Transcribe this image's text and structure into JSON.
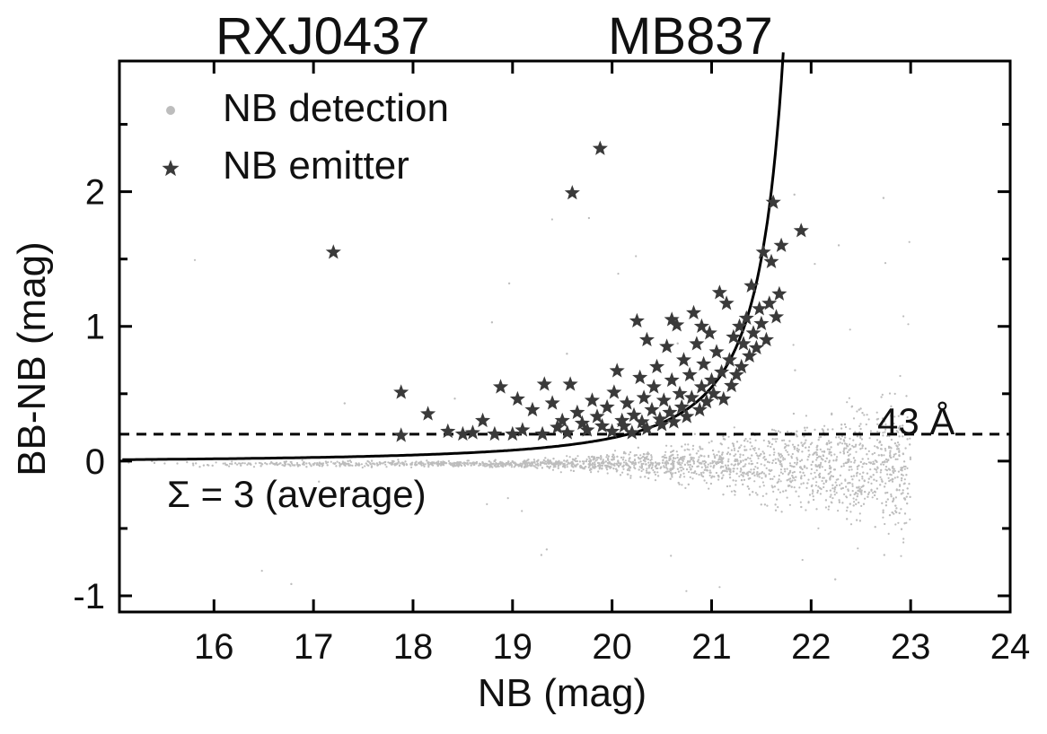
{
  "chart_data": {
    "type": "scatter",
    "title_left": "RXJ0437",
    "title_right": "MB837",
    "xlabel": "NB (mag)",
    "ylabel": "BB-NB (mag)",
    "xlim": [
      15.05,
      24.0
    ],
    "ylim": [
      -1.12,
      2.97
    ],
    "x_ticks": [
      16,
      17,
      18,
      19,
      20,
      21,
      22,
      23,
      24
    ],
    "y_ticks": [
      -1,
      0,
      1,
      2
    ],
    "y_minor_ticks": [
      -0.5,
      0.5,
      1.5,
      2.5
    ],
    "grid": false,
    "legend_position": "top-left",
    "colors": {
      "detection": "#bdbdbd",
      "emitter": "#3a3a3a",
      "axis": "#000000",
      "curve": "#000000"
    },
    "series": [
      {
        "name": "NB detection",
        "marker": "dot",
        "note": "dense cloud of points centered near BB-NB = 0 for NB 15–23 mag"
      },
      {
        "name": "NB emitter",
        "marker": "star",
        "points": [
          [
            17.2,
            1.55
          ],
          [
            17.88,
            0.51
          ],
          [
            17.88,
            0.19
          ],
          [
            18.15,
            0.35
          ],
          [
            18.35,
            0.22
          ],
          [
            18.5,
            0.2
          ],
          [
            18.6,
            0.21
          ],
          [
            18.7,
            0.3
          ],
          [
            18.82,
            0.2
          ],
          [
            18.88,
            0.55
          ],
          [
            19.0,
            0.2
          ],
          [
            19.05,
            0.46
          ],
          [
            19.1,
            0.23
          ],
          [
            19.2,
            0.38
          ],
          [
            19.3,
            0.2
          ],
          [
            19.32,
            0.57
          ],
          [
            19.4,
            0.43
          ],
          [
            19.45,
            0.25
          ],
          [
            19.5,
            0.3
          ],
          [
            19.55,
            0.21
          ],
          [
            19.58,
            0.57
          ],
          [
            19.6,
            1.99
          ],
          [
            19.65,
            0.36
          ],
          [
            19.7,
            0.28
          ],
          [
            19.75,
            0.23
          ],
          [
            19.8,
            0.45
          ],
          [
            19.85,
            0.33
          ],
          [
            19.88,
            2.32
          ],
          [
            19.9,
            0.26
          ],
          [
            19.95,
            0.4
          ],
          [
            20.0,
            0.22
          ],
          [
            20.02,
            0.51
          ],
          [
            20.05,
            0.67
          ],
          [
            20.1,
            0.3
          ],
          [
            20.12,
            0.26
          ],
          [
            20.15,
            0.43
          ],
          [
            20.2,
            0.21
          ],
          [
            20.22,
            0.34
          ],
          [
            20.25,
            1.04
          ],
          [
            20.28,
            0.62
          ],
          [
            20.3,
            0.29
          ],
          [
            20.32,
            0.47
          ],
          [
            20.35,
            0.24
          ],
          [
            20.4,
            0.38
          ],
          [
            20.42,
            0.55
          ],
          [
            20.45,
            0.7
          ],
          [
            20.48,
            0.31
          ],
          [
            20.5,
            0.27
          ],
          [
            20.52,
            0.45
          ],
          [
            20.55,
            0.85
          ],
          [
            20.58,
            0.36
          ],
          [
            20.6,
            0.6
          ],
          [
            20.62,
            0.29
          ],
          [
            20.65,
            1.01
          ],
          [
            20.68,
            0.5
          ],
          [
            20.7,
            0.4
          ],
          [
            20.72,
            0.75
          ],
          [
            20.75,
            0.33
          ],
          [
            20.78,
            0.64
          ],
          [
            20.8,
            0.47
          ],
          [
            20.82,
            1.1
          ],
          [
            20.85,
            0.87
          ],
          [
            20.88,
            0.38
          ],
          [
            20.9,
            0.55
          ],
          [
            20.92,
            0.72
          ],
          [
            20.95,
            0.44
          ],
          [
            20.98,
            0.95
          ],
          [
            21.0,
            0.6
          ],
          [
            21.02,
            0.5
          ],
          [
            21.05,
            0.81
          ],
          [
            21.08,
            1.25
          ],
          [
            21.1,
            0.66
          ],
          [
            21.12,
            0.46
          ],
          [
            21.15,
            1.17
          ],
          [
            21.18,
            0.75
          ],
          [
            21.2,
            0.56
          ],
          [
            21.22,
            0.92
          ],
          [
            21.25,
            0.64
          ],
          [
            21.28,
            1.0
          ],
          [
            21.3,
            0.7
          ],
          [
            21.32,
            0.87
          ],
          [
            21.35,
            1.06
          ],
          [
            21.38,
            0.78
          ],
          [
            21.4,
            1.3
          ],
          [
            21.42,
            0.95
          ],
          [
            21.45,
            0.84
          ],
          [
            21.48,
            1.13
          ],
          [
            21.5,
            1.02
          ],
          [
            21.52,
            1.55
          ],
          [
            21.55,
            0.9
          ],
          [
            21.58,
            1.17
          ],
          [
            21.6,
            1.48
          ],
          [
            21.62,
            1.92
          ],
          [
            21.65,
            1.07
          ],
          [
            21.68,
            1.24
          ],
          [
            21.7,
            1.6
          ],
          [
            21.9,
            1.71
          ],
          [
            20.35,
            0.9
          ],
          [
            20.6,
            1.05
          ],
          [
            20.9,
            1.0
          ]
        ]
      }
    ],
    "curve_label": "Σ = 3 (average)",
    "hline": {
      "y": 0.2,
      "label": "43 Å"
    }
  }
}
